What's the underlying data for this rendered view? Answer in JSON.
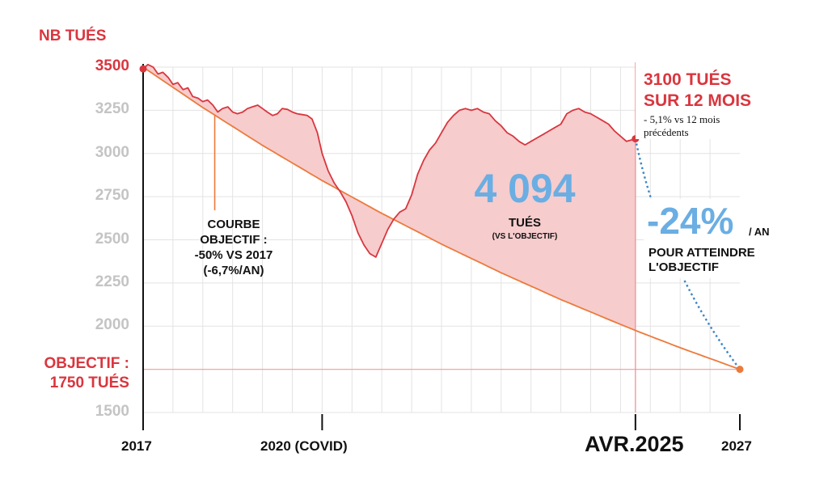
{
  "chart_data": {
    "type": "area",
    "ylabel": "NB TUÉS",
    "ylim": [
      1500,
      3500
    ],
    "yticks": [
      3500,
      3250,
      3000,
      2750,
      2500,
      2250,
      2000,
      1500
    ],
    "x_range": [
      2017,
      2027
    ],
    "xticks": [
      {
        "x": 2017,
        "label": "2017"
      },
      {
        "x": 2020,
        "label": "2020 (COVID)"
      },
      {
        "x": 2025.25,
        "label": "AVR.2025"
      },
      {
        "x": 2027,
        "label": "2027"
      }
    ],
    "series": [
      {
        "kind": "actual_rolling_12_months",
        "points": [
          [
            2017.0,
            3490
          ],
          [
            2017.08,
            3515
          ],
          [
            2017.17,
            3500
          ],
          [
            2017.25,
            3460
          ],
          [
            2017.33,
            3470
          ],
          [
            2017.42,
            3440
          ],
          [
            2017.5,
            3400
          ],
          [
            2017.58,
            3410
          ],
          [
            2017.67,
            3370
          ],
          [
            2017.75,
            3380
          ],
          [
            2017.83,
            3330
          ],
          [
            2017.92,
            3320
          ],
          [
            2018.0,
            3300
          ],
          [
            2018.08,
            3310
          ],
          [
            2018.17,
            3280
          ],
          [
            2018.25,
            3240
          ],
          [
            2018.33,
            3260
          ],
          [
            2018.42,
            3270
          ],
          [
            2018.5,
            3240
          ],
          [
            2018.58,
            3230
          ],
          [
            2018.67,
            3240
          ],
          [
            2018.75,
            3260
          ],
          [
            2018.83,
            3270
          ],
          [
            2018.92,
            3280
          ],
          [
            2019.0,
            3260
          ],
          [
            2019.08,
            3240
          ],
          [
            2019.17,
            3220
          ],
          [
            2019.25,
            3230
          ],
          [
            2019.33,
            3260
          ],
          [
            2019.42,
            3255
          ],
          [
            2019.5,
            3240
          ],
          [
            2019.58,
            3230
          ],
          [
            2019.67,
            3225
          ],
          [
            2019.75,
            3220
          ],
          [
            2019.83,
            3200
          ],
          [
            2019.92,
            3120
          ],
          [
            2020.0,
            3000
          ],
          [
            2020.1,
            2900
          ],
          [
            2020.2,
            2830
          ],
          [
            2020.3,
            2780
          ],
          [
            2020.4,
            2720
          ],
          [
            2020.5,
            2640
          ],
          [
            2020.6,
            2540
          ],
          [
            2020.7,
            2470
          ],
          [
            2020.8,
            2420
          ],
          [
            2020.9,
            2400
          ],
          [
            2021.0,
            2480
          ],
          [
            2021.1,
            2560
          ],
          [
            2021.2,
            2620
          ],
          [
            2021.3,
            2660
          ],
          [
            2021.4,
            2680
          ],
          [
            2021.5,
            2760
          ],
          [
            2021.6,
            2880
          ],
          [
            2021.7,
            2960
          ],
          [
            2021.8,
            3020
          ],
          [
            2021.9,
            3060
          ],
          [
            2022.0,
            3120
          ],
          [
            2022.1,
            3180
          ],
          [
            2022.2,
            3220
          ],
          [
            2022.3,
            3250
          ],
          [
            2022.4,
            3260
          ],
          [
            2022.5,
            3250
          ],
          [
            2022.6,
            3260
          ],
          [
            2022.7,
            3240
          ],
          [
            2022.8,
            3230
          ],
          [
            2022.9,
            3190
          ],
          [
            2023.0,
            3160
          ],
          [
            2023.1,
            3120
          ],
          [
            2023.2,
            3100
          ],
          [
            2023.3,
            3070
          ],
          [
            2023.4,
            3050
          ],
          [
            2023.5,
            3070
          ],
          [
            2023.6,
            3090
          ],
          [
            2023.7,
            3110
          ],
          [
            2023.8,
            3130
          ],
          [
            2023.9,
            3150
          ],
          [
            2024.0,
            3170
          ],
          [
            2024.1,
            3230
          ],
          [
            2024.2,
            3250
          ],
          [
            2024.3,
            3260
          ],
          [
            2024.4,
            3240
          ],
          [
            2024.5,
            3230
          ],
          [
            2024.6,
            3210
          ],
          [
            2024.7,
            3190
          ],
          [
            2024.8,
            3170
          ],
          [
            2024.9,
            3130
          ],
          [
            2025.0,
            3100
          ],
          [
            2025.1,
            3070
          ],
          [
            2025.25,
            3085
          ]
        ]
      },
      {
        "kind": "target_curve",
        "annotation": [
          "COURBE",
          "OBJECTIF :",
          "-50% VS 2017",
          "(-6,7%/AN)"
        ],
        "points": [
          [
            2017,
            3500
          ],
          [
            2018,
            3266
          ],
          [
            2019,
            3047
          ],
          [
            2020,
            2843
          ],
          [
            2021,
            2653
          ],
          [
            2022,
            2475
          ],
          [
            2023,
            2309
          ],
          [
            2024,
            2154
          ],
          [
            2025,
            2010
          ],
          [
            2025.25,
            1975
          ],
          [
            2026,
            1875
          ],
          [
            2027,
            1750
          ]
        ]
      },
      {
        "kind": "projection_dotted",
        "points": [
          [
            2025.25,
            3085
          ],
          [
            2027,
            1750
          ]
        ]
      }
    ],
    "target_value": 1750,
    "target_label": [
      "OBJECTIF :",
      "1750 TUÉS"
    ],
    "gap_value": "4 094",
    "gap_label": "TUÉS",
    "gap_sub": "(VS L'OBJECTIF)",
    "current_label": [
      "3100 TUÉS",
      "SUR 12 MOIS"
    ],
    "current_sub": [
      "- 5,1% vs 12 mois",
      "précédents"
    ],
    "needed_rate": "-24%",
    "needed_rate_unit": "/ AN",
    "needed_rate_text": [
      "POUR ATTEINDRE",
      "L'OBJECTIF"
    ],
    "grid": true,
    "colors": {
      "actual": "#d9363e",
      "fill": "#f6cccd",
      "target": "#ec7a3c",
      "projection": "#3d86c6",
      "accent_red": "#d9363e",
      "accent_blue": "#6aaee3",
      "grid": "#e3e3e3"
    }
  }
}
